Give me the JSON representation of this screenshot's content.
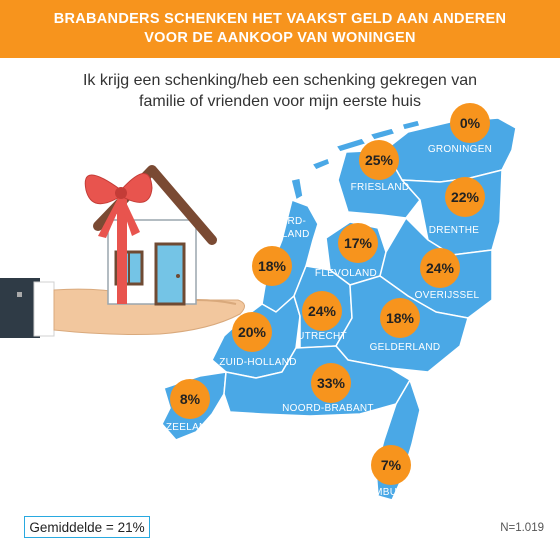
{
  "title_lines": [
    "BRABANDERS SCHENKEN HET VAAKST GELD AAN ANDEREN",
    "VOOR DE AANKOOP VAN WONINGEN"
  ],
  "subtitle_lines": [
    "Ik krijg een schenking/heb een schenking gekregen van",
    "familie of vrienden voor mijn eerste huis"
  ],
  "average": "Gemiddelde = 21%",
  "sample": "N=1.019",
  "colors": {
    "banner": "#f7941d",
    "map": "#4aa8e6",
    "bubble": "#f7941d",
    "label": "#ffffff",
    "avg_border": "#29a9e0"
  },
  "chart_data": {
    "type": "map",
    "unit": "%",
    "regions": [
      {
        "name": "GRONINGEN",
        "value": 0,
        "label": "0%"
      },
      {
        "name": "FRIESLAND",
        "value": 25,
        "label": "25%"
      },
      {
        "name": "DRENTHE",
        "value": 22,
        "label": "22%"
      },
      {
        "name": "NOORD-HOLLAND",
        "value": 18,
        "label": "18%"
      },
      {
        "name": "FLEVOLAND",
        "value": 17,
        "label": "17%"
      },
      {
        "name": "OVERIJSSEL",
        "value": 24,
        "label": "24%"
      },
      {
        "name": "ZUID-HOLLAND",
        "value": 20,
        "label": "20%"
      },
      {
        "name": "UTRECHT",
        "value": 24,
        "label": "24%"
      },
      {
        "name": "GELDERLAND",
        "value": 18,
        "label": "18%"
      },
      {
        "name": "ZEELAND",
        "value": 8,
        "label": "8%"
      },
      {
        "name": "NOORD-BRABANT",
        "value": 33,
        "label": "33%"
      },
      {
        "name": "LIMBURG",
        "value": 7,
        "label": "7%"
      }
    ]
  }
}
